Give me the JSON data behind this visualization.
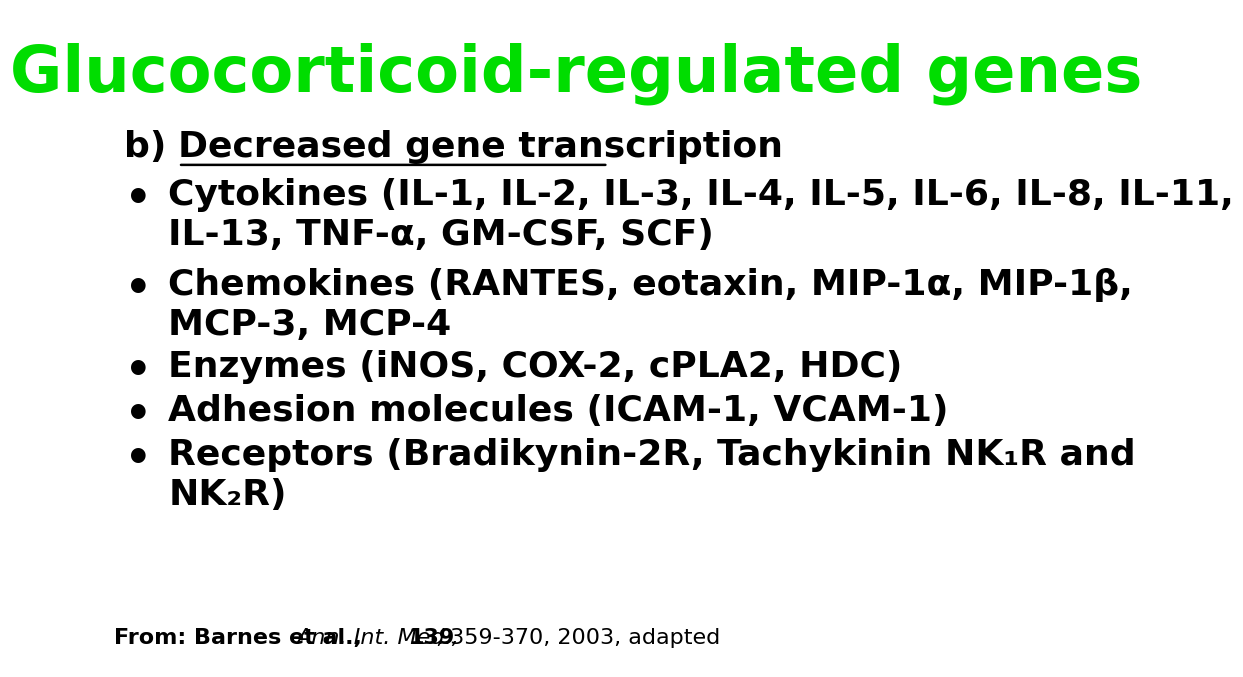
{
  "title": "Glucocorticoid-regulated genes",
  "title_color": "#00DD00",
  "title_fontsize": 46,
  "background_color": "#FFFFFF",
  "section_fontsize": 26,
  "bullet_fontsize": 26,
  "bullet_color": "#000000",
  "footer_fontsize": 16,
  "bullet_entries": [
    [
      "Cytokines (IL-1, IL-2, IL-3, IL-4, IL-5, IL-6, IL-8, IL-11,",
      "IL-13, TNF-α, GM-CSF, SCF)"
    ],
    [
      "Chemokines (RANTES, eotaxin, MIP-1α, MIP-1β,",
      "MCP-3, MCP-4"
    ],
    [
      "Enzymes (iNOS, COX-2, cPLA2, HDC)",
      null
    ],
    [
      "Adhesion molecules (ICAM-1, VCAM-1)",
      null
    ],
    [
      "Receptors (Bradikynin-2R, Tachykinin NK₁R and",
      "NK₂R)"
    ]
  ]
}
